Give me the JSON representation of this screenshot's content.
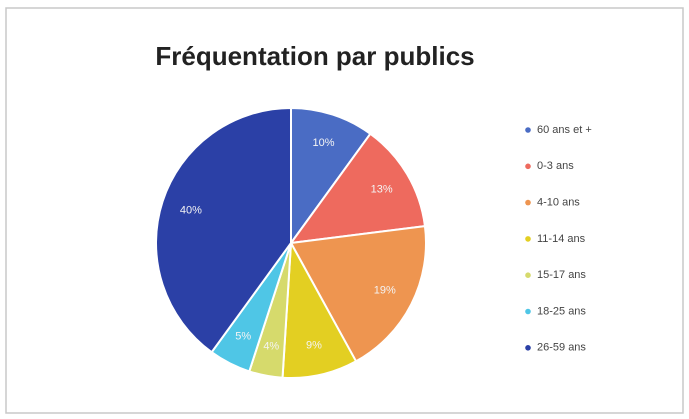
{
  "chart_data": {
    "type": "pie",
    "title": "Fréquentation par publics",
    "categories": [
      "60 ans et +",
      "0-3 ans",
      "4-10 ans",
      "11-14 ans",
      "15-17 ans",
      "18-25 ans",
      "26-59 ans"
    ],
    "values": [
      10,
      13,
      19,
      9,
      4,
      5,
      40
    ],
    "value_labels": [
      "10%",
      "13%",
      "19%",
      "9%",
      "4%",
      "5%",
      "40%"
    ],
    "colors": [
      "#4a6cc4",
      "#ee6a5e",
      "#ee9550",
      "#e3cf22",
      "#d6da6c",
      "#4fc6e6",
      "#2b40a6"
    ],
    "legend": "right"
  }
}
